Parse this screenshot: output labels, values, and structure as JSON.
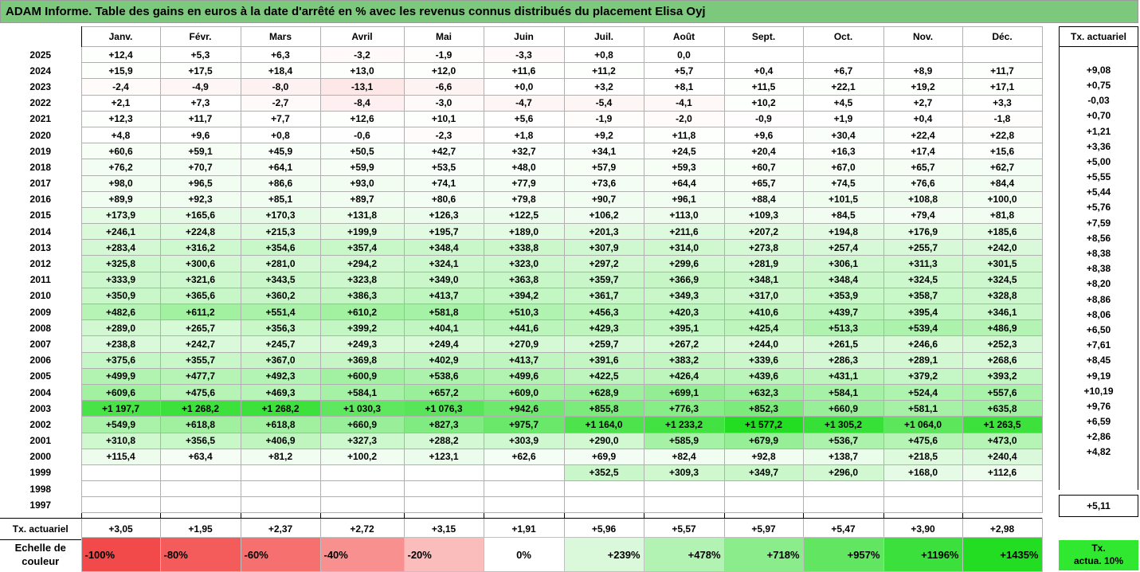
{
  "title": "ADAM Informe. Table des gains en euros à la date d'arrêté en % avec les revenus connus distribués du placement Elisa Oyj",
  "months": [
    "Janv.",
    "Févr.",
    "Mars",
    "Avril",
    "Mai",
    "Juin",
    "Juil.",
    "Août",
    "Sept.",
    "Oct.",
    "Nov.",
    "Déc."
  ],
  "tx_header": "Tx. actuariel",
  "rows": [
    {
      "year": "2025",
      "cells": [
        "+12,4",
        "+5,3",
        "+6,3",
        "-3,2",
        "-1,9",
        "-3,3",
        "+0,8",
        "0,0",
        "",
        "",
        "",
        ""
      ],
      "tx": ""
    },
    {
      "year": "2024",
      "cells": [
        "+15,9",
        "+17,5",
        "+18,4",
        "+13,0",
        "+12,0",
        "+11,6",
        "+11,2",
        "+5,7",
        "+0,4",
        "+6,7",
        "+8,9",
        "+11,7"
      ],
      "tx": "+9,08"
    },
    {
      "year": "2023",
      "cells": [
        "-2,4",
        "-4,9",
        "-8,0",
        "-13,1",
        "-6,6",
        "+0,0",
        "+3,2",
        "+8,1",
        "+11,5",
        "+22,1",
        "+19,2",
        "+17,1"
      ],
      "tx": "+0,75"
    },
    {
      "year": "2022",
      "cells": [
        "+2,1",
        "+7,3",
        "-2,7",
        "-8,4",
        "-3,0",
        "-4,7",
        "-5,4",
        "-4,1",
        "+10,2",
        "+4,5",
        "+2,7",
        "+3,3"
      ],
      "tx": "-0,03"
    },
    {
      "year": "2021",
      "cells": [
        "+12,3",
        "+11,7",
        "+7,7",
        "+12,6",
        "+10,1",
        "+5,6",
        "-1,9",
        "-2,0",
        "-0,9",
        "+1,9",
        "+0,4",
        "-1,8"
      ],
      "tx": "+0,70"
    },
    {
      "year": "2020",
      "cells": [
        "+4,8",
        "+9,6",
        "+0,8",
        "-0,6",
        "-2,3",
        "+1,8",
        "+9,2",
        "+11,8",
        "+9,6",
        "+30,4",
        "+22,4",
        "+22,8"
      ],
      "tx": "+1,21"
    },
    {
      "year": "2019",
      "cells": [
        "+60,6",
        "+59,1",
        "+45,9",
        "+50,5",
        "+42,7",
        "+32,7",
        "+34,1",
        "+24,5",
        "+20,4",
        "+16,3",
        "+17,4",
        "+15,6"
      ],
      "tx": "+3,36"
    },
    {
      "year": "2018",
      "cells": [
        "+76,2",
        "+70,7",
        "+64,1",
        "+59,9",
        "+53,5",
        "+48,0",
        "+57,9",
        "+59,3",
        "+60,7",
        "+67,0",
        "+65,7",
        "+62,7"
      ],
      "tx": "+5,00"
    },
    {
      "year": "2017",
      "cells": [
        "+98,0",
        "+96,5",
        "+86,6",
        "+93,0",
        "+74,1",
        "+77,9",
        "+73,6",
        "+64,4",
        "+65,7",
        "+74,5",
        "+76,6",
        "+84,4"
      ],
      "tx": "+5,55"
    },
    {
      "year": "2016",
      "cells": [
        "+89,9",
        "+92,3",
        "+85,1",
        "+89,7",
        "+80,6",
        "+79,8",
        "+90,7",
        "+96,1",
        "+88,4",
        "+101,5",
        "+108,8",
        "+100,0"
      ],
      "tx": "+5,44"
    },
    {
      "year": "2015",
      "cells": [
        "+173,9",
        "+165,6",
        "+170,3",
        "+131,8",
        "+126,3",
        "+122,5",
        "+106,2",
        "+113,0",
        "+109,3",
        "+84,5",
        "+79,4",
        "+81,8"
      ],
      "tx": "+5,76"
    },
    {
      "year": "2014",
      "cells": [
        "+246,1",
        "+224,8",
        "+215,3",
        "+199,9",
        "+195,7",
        "+189,0",
        "+201,3",
        "+211,6",
        "+207,2",
        "+194,8",
        "+176,9",
        "+185,6"
      ],
      "tx": "+7,59"
    },
    {
      "year": "2013",
      "cells": [
        "+283,4",
        "+316,2",
        "+354,6",
        "+357,4",
        "+348,4",
        "+338,8",
        "+307,9",
        "+314,0",
        "+273,8",
        "+257,4",
        "+255,7",
        "+242,0"
      ],
      "tx": "+8,56"
    },
    {
      "year": "2012",
      "cells": [
        "+325,8",
        "+300,6",
        "+281,0",
        "+294,2",
        "+324,1",
        "+323,0",
        "+297,2",
        "+299,6",
        "+281,9",
        "+306,1",
        "+311,3",
        "+301,5"
      ],
      "tx": "+8,38"
    },
    {
      "year": "2011",
      "cells": [
        "+333,9",
        "+321,6",
        "+343,5",
        "+323,8",
        "+349,0",
        "+363,8",
        "+359,7",
        "+366,9",
        "+348,1",
        "+348,4",
        "+324,5",
        "+324,5"
      ],
      "tx": "+8,38"
    },
    {
      "year": "2010",
      "cells": [
        "+350,9",
        "+365,6",
        "+360,2",
        "+386,3",
        "+413,7",
        "+394,2",
        "+361,7",
        "+349,3",
        "+317,0",
        "+353,9",
        "+358,7",
        "+328,8"
      ],
      "tx": "+8,20"
    },
    {
      "year": "2009",
      "cells": [
        "+482,6",
        "+611,2",
        "+551,4",
        "+610,2",
        "+581,8",
        "+510,3",
        "+456,3",
        "+420,3",
        "+410,6",
        "+439,7",
        "+395,4",
        "+346,1"
      ],
      "tx": "+8,86"
    },
    {
      "year": "2008",
      "cells": [
        "+289,0",
        "+265,7",
        "+356,3",
        "+399,2",
        "+404,1",
        "+441,6",
        "+429,3",
        "+395,1",
        "+425,4",
        "+513,3",
        "+539,4",
        "+486,9"
      ],
      "tx": "+8,06"
    },
    {
      "year": "2007",
      "cells": [
        "+238,8",
        "+242,7",
        "+245,7",
        "+249,3",
        "+249,4",
        "+270,9",
        "+259,7",
        "+267,2",
        "+244,0",
        "+261,5",
        "+246,6",
        "+252,3"
      ],
      "tx": "+6,50"
    },
    {
      "year": "2006",
      "cells": [
        "+375,6",
        "+355,7",
        "+367,0",
        "+369,8",
        "+402,9",
        "+413,7",
        "+391,6",
        "+383,2",
        "+339,6",
        "+286,3",
        "+289,1",
        "+268,6"
      ],
      "tx": "+7,61"
    },
    {
      "year": "2005",
      "cells": [
        "+499,9",
        "+477,7",
        "+492,3",
        "+600,9",
        "+538,6",
        "+499,6",
        "+422,5",
        "+426,4",
        "+439,6",
        "+431,1",
        "+379,2",
        "+393,2"
      ],
      "tx": "+8,45"
    },
    {
      "year": "2004",
      "cells": [
        "+609,6",
        "+475,6",
        "+469,3",
        "+584,1",
        "+657,2",
        "+609,0",
        "+628,9",
        "+699,1",
        "+632,3",
        "+584,1",
        "+524,4",
        "+557,6"
      ],
      "tx": "+9,19"
    },
    {
      "year": "2003",
      "cells": [
        "+1 197,7",
        "+1 268,2",
        "+1 268,2",
        "+1 030,3",
        "+1 076,3",
        "+942,6",
        "+855,8",
        "+776,3",
        "+852,3",
        "+660,9",
        "+581,1",
        "+635,8"
      ],
      "tx": "+10,19"
    },
    {
      "year": "2002",
      "cells": [
        "+549,9",
        "+618,8",
        "+618,8",
        "+660,9",
        "+827,3",
        "+975,7",
        "+1 164,0",
        "+1 233,2",
        "+1 577,2",
        "+1 305,2",
        "+1 064,0",
        "+1 263,5"
      ],
      "tx": "+9,76"
    },
    {
      "year": "2001",
      "cells": [
        "+310,8",
        "+356,5",
        "+406,9",
        "+327,3",
        "+288,2",
        "+303,9",
        "+290,0",
        "+585,9",
        "+679,9",
        "+536,7",
        "+475,6",
        "+473,0"
      ],
      "tx": "+6,59"
    },
    {
      "year": "2000",
      "cells": [
        "+115,4",
        "+63,4",
        "+81,2",
        "+100,2",
        "+123,1",
        "+62,6",
        "+69,9",
        "+82,4",
        "+92,8",
        "+138,7",
        "+218,5",
        "+240,4"
      ],
      "tx": "+2,86"
    },
    {
      "year": "1999",
      "cells": [
        "",
        "",
        "",
        "",
        "",
        "",
        "+352,5",
        "+309,3",
        "+349,7",
        "+296,0",
        "+168,0",
        "+112,6"
      ],
      "tx": "+4,82"
    },
    {
      "year": "1998",
      "cells": [
        "",
        "",
        "",
        "",
        "",
        "",
        "",
        "",
        "",
        "",
        "",
        ""
      ],
      "tx": ""
    },
    {
      "year": "1997",
      "cells": [
        "",
        "",
        "",
        "",
        "",
        "",
        "",
        "",
        "",
        "",
        "",
        ""
      ],
      "tx": ""
    }
  ],
  "footer": {
    "label": "Tx. actuariel",
    "values": [
      "+3,05",
      "+1,95",
      "+2,37",
      "+2,72",
      "+3,15",
      "+1,91",
      "+5,96",
      "+5,57",
      "+5,97",
      "+5,47",
      "+3,90",
      "+2,98"
    ],
    "tx": "+5,11"
  },
  "scale": {
    "label_line1": "Echelle de",
    "label_line2": "couleur",
    "items": [
      {
        "text": "-100%",
        "color": "#f24a4a"
      },
      {
        "text": "-80%",
        "color": "#f45c5c"
      },
      {
        "text": "-60%",
        "color": "#f67070"
      },
      {
        "text": "-40%",
        "color": "#f99090"
      },
      {
        "text": "-20%",
        "color": "#fbbcbc"
      },
      {
        "text": "0%",
        "color": "#ffffff"
      },
      {
        "text": "+239%",
        "color": "#daf8da"
      },
      {
        "text": "+478%",
        "color": "#b2f2b2"
      },
      {
        "text": "+718%",
        "color": "#8aec8a"
      },
      {
        "text": "+957%",
        "color": "#62e662"
      },
      {
        "text": "+1196%",
        "color": "#3ce03c"
      },
      {
        "text": "+1435%",
        "color": "#22dd22"
      }
    ],
    "tx_line1": "Tx.",
    "tx_line2": "actua. 10%",
    "tx_color": "#30e830"
  }
}
